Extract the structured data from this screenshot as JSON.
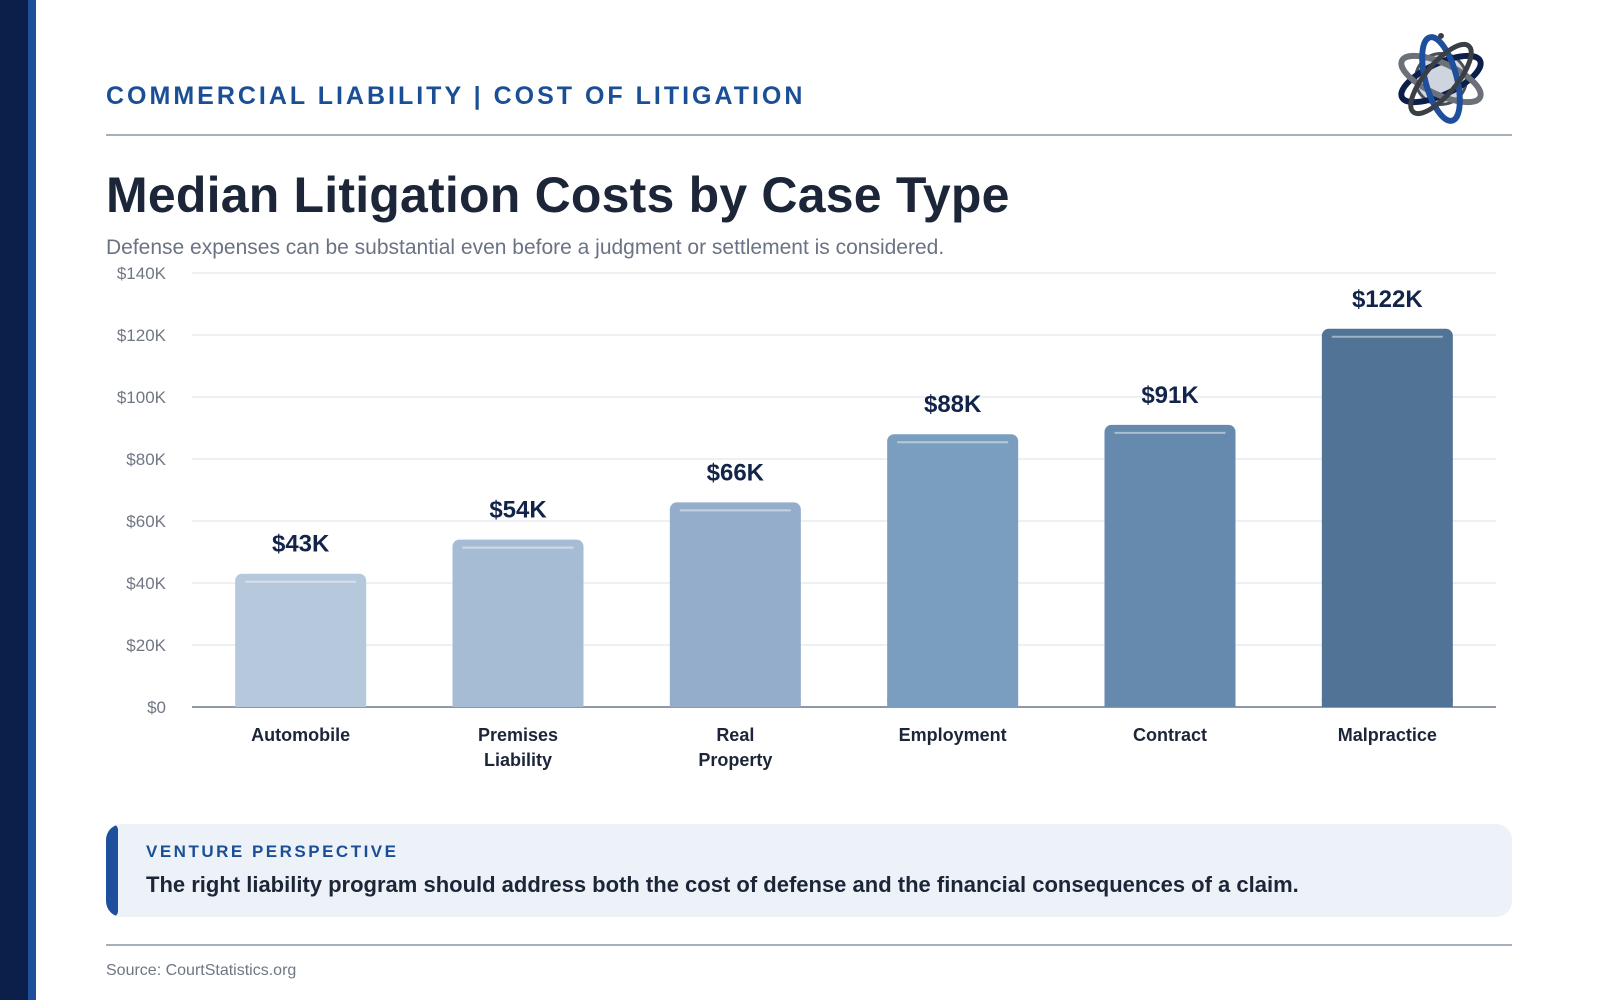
{
  "header": {
    "kicker": "COMMERCIAL LIABILITY | COST OF LITIGATION",
    "logo_icon": "globe-orbit-logo-icon"
  },
  "title": "Median Litigation Costs by Case Type",
  "subtitle": "Defense expenses can be substantial even before a judgment or settlement is considered.",
  "chart_data": {
    "type": "bar",
    "categories": [
      [
        "Automobile"
      ],
      [
        "Premises",
        "Liability"
      ],
      [
        "Real",
        "Property"
      ],
      [
        "Employment"
      ],
      [
        "Contract"
      ],
      [
        "Malpractice"
      ]
    ],
    "values": [
      43,
      54,
      66,
      88,
      91,
      122
    ],
    "value_labels": [
      "$43K",
      "$54K",
      "$66K",
      "$88K",
      "$91K",
      "$122K"
    ],
    "ylim": [
      0,
      140
    ],
    "yticks": [
      0,
      20,
      40,
      60,
      80,
      100,
      120,
      140
    ],
    "ytick_labels": [
      "$0",
      "$20K",
      "$40K",
      "$60K",
      "$80K",
      "$100K",
      "$120K",
      "$140K"
    ],
    "grid": true,
    "bar_colors": [
      "#b6c8db",
      "#a6bcd4",
      "#93adca",
      "#7a9ec0",
      "#6689ae",
      "#517396"
    ]
  },
  "callout": {
    "label": "VENTURE PERSPECTIVE",
    "text": "The right liability program should address both the cost of defense and the financial consequences of a claim."
  },
  "source": "Source: CourtStatistics.org",
  "colors": {
    "brand_dark": "#0b1f4a",
    "brand_blue": "#1d4f9c",
    "accent_text": "#1a4f95"
  }
}
